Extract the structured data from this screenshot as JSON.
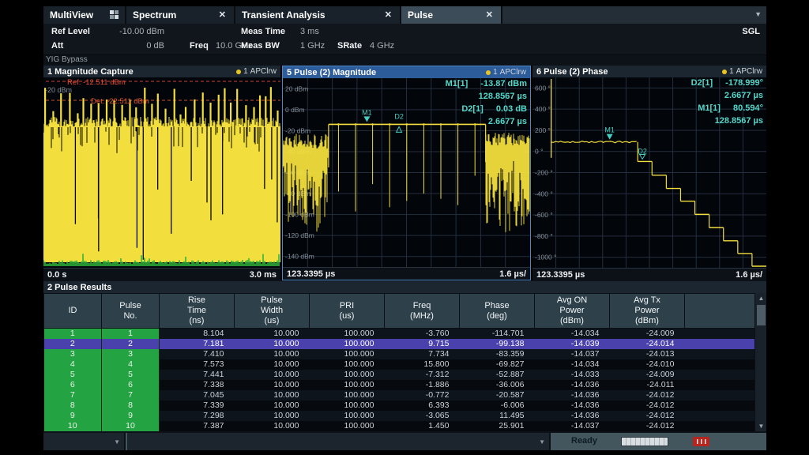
{
  "tabs": {
    "items": [
      {
        "label": "MultiView"
      },
      {
        "label": "Spectrum"
      },
      {
        "label": "Transient Analysis"
      },
      {
        "label": "Pulse"
      }
    ],
    "active": "Pulse"
  },
  "icons": {
    "close": "✕",
    "dropdown": "▼",
    "scroll_up": "▲",
    "scroll_down": "▼"
  },
  "header": {
    "ref_level_label": "Ref Level",
    "ref_level_value": "-10.00 dBm",
    "att_label": "Att",
    "att_value": "0 dB",
    "freq_label": "Freq",
    "freq_value": "10.0 GHz",
    "meas_time_label": "Meas Time",
    "meas_time_value": "3 ms",
    "meas_bw_label": "Meas BW",
    "meas_bw_value": "1 GHz",
    "srate_label": "SRate",
    "srate_value": "4 GHz",
    "mode_badge": "SGL",
    "yig_bypass": "YIG Bypass"
  },
  "windows": {
    "capture": {
      "title": "1 Magnitude Capture",
      "trace_number": "1",
      "trace_mode": "APClrw",
      "ref_line_label": "Ref. -12.511 dBm",
      "det_line_label": "Det. -22.511 dBm",
      "y_tick": "-20 dBm",
      "x_start": "0.0 s",
      "x_end": "3.0 ms"
    },
    "magnitude": {
      "title": "5 Pulse (2) Magnitude",
      "trace_number": "1",
      "trace_mode": "APClrw",
      "markers": [
        {
          "name": "M1[1]",
          "value": "-13.87 dBm",
          "position": "128.8567 µs"
        },
        {
          "name": "D2[1]",
          "value": "0.03 dB",
          "position": "2.6677 µs"
        }
      ],
      "y_ticks": [
        "20 dBm",
        "0 dBm",
        "-20 dBm",
        "-40 dBm",
        "-60 dBm",
        "-80 dBm",
        "-100 dBm",
        "-120 dBm",
        "-140 dBm"
      ],
      "y_tick_values": [
        20,
        0,
        -20,
        -40,
        -60,
        -80,
        -100,
        -120,
        -140
      ],
      "x_start": "123.3395 µs",
      "x_scale": "1.6 µs/"
    },
    "phase": {
      "title": "6 Pulse (2) Phase",
      "trace_number": "1",
      "trace_mode": "APClrw",
      "markers": [
        {
          "name": "D2[1]",
          "value": "-178.999°",
          "position": "2.6677 µs"
        },
        {
          "name": "M1[1]",
          "value": "80.594°",
          "position": "128.8567 µs"
        }
      ],
      "y_ticks": [
        "600 °",
        "400 °",
        "200 °",
        "0 °",
        "-200 °",
        "-400 °",
        "-600 °",
        "-800 °",
        "-1000 °"
      ],
      "y_tick_values": [
        600,
        400,
        200,
        0,
        -200,
        -400,
        -600,
        -800,
        -1000
      ],
      "x_start": "123.3395 µs",
      "x_scale": "1.6 µs/"
    }
  },
  "results": {
    "title": "2 Pulse Results",
    "columns": [
      "ID",
      "Pulse\nNo.",
      "Rise\nTime\n(ns)",
      "Pulse\nWidth\n(us)",
      "PRI\n(us)",
      "Freq\n(MHz)",
      "Phase\n(deg)",
      "Avg ON\nPower\n(dBm)",
      "Avg Tx\nPower\n(dBm)",
      ""
    ],
    "rows": [
      [
        "1",
        "1",
        "8.104",
        "10.000",
        "100.000",
        "-3.760",
        "-114.701",
        "-14.034",
        "-24.009",
        ""
      ],
      [
        "2",
        "2",
        "7.181",
        "10.000",
        "100.000",
        "9.715",
        "-99.138",
        "-14.039",
        "-24.014",
        ""
      ],
      [
        "3",
        "3",
        "7.410",
        "10.000",
        "100.000",
        "7.734",
        "-83.359",
        "-14.037",
        "-24.013",
        ""
      ],
      [
        "4",
        "4",
        "7.573",
        "10.000",
        "100.000",
        "15.800",
        "-69.827",
        "-14.034",
        "-24.010",
        ""
      ],
      [
        "5",
        "5",
        "7.441",
        "10.000",
        "100.000",
        "-7.312",
        "-52.887",
        "-14.033",
        "-24.009",
        ""
      ],
      [
        "6",
        "6",
        "7.338",
        "10.000",
        "100.000",
        "-1.886",
        "-36.006",
        "-14.036",
        "-24.011",
        ""
      ],
      [
        "7",
        "7",
        "7.045",
        "10.000",
        "100.000",
        "-0.772",
        "-20.587",
        "-14.036",
        "-24.012",
        ""
      ],
      [
        "8",
        "8",
        "7.339",
        "10.000",
        "100.000",
        "6.393",
        "-6.006",
        "-14.036",
        "-24.012",
        ""
      ],
      [
        "9",
        "9",
        "7.298",
        "10.000",
        "100.000",
        "-3.065",
        "11.495",
        "-14.036",
        "-24.012",
        ""
      ],
      [
        "10",
        "10",
        "7.387",
        "10.000",
        "100.000",
        "1.450",
        "25.901",
        "-14.037",
        "-24.012",
        ""
      ]
    ],
    "selected_row": 2
  },
  "statusbar": {
    "ready": "Ready"
  },
  "colors": {
    "trace_yellow": "#f2de3d",
    "marker_teal": "#45d0c2",
    "ref_line_red": "#e84b38",
    "det_line_orange": "#e05a30",
    "grid": "#242f3e",
    "tick_text": "#868e98",
    "id_green": "#23a342",
    "selected_row_purple": "#4a41ad",
    "green_baseline": "#2fb53c"
  }
}
